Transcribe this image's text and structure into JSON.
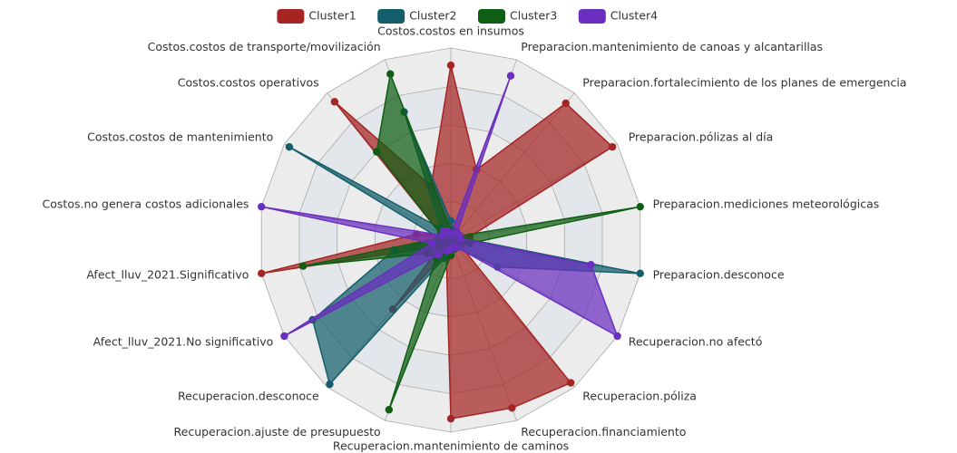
{
  "chart_data": {
    "type": "radar",
    "categories": [
      "Costos.costos en insumos",
      "Preparacion.mantenimiento de canoas y alcantarillas",
      "Preparacion.fortalecimiento de los planes de emergencia",
      "Preparacion.pólizas al día",
      "Preparacion.mediciones meteorológicas",
      "Preparacion.desconoce",
      "Recuperacion.no afectó",
      "Recuperacion.póliza",
      "Recuperacion.financiamiento",
      "Recuperacion.mantenimiento de caminos",
      "Recuperacion.ajuste de presupuesto",
      "Recuperacion.desconoce",
      "Afect_lluv_2021.No significativo",
      "Afect_lluv_2021.Significativo",
      "Costos.no genera costos adicionales",
      "Costos.costos de mantenimiento",
      "Costos.costos operativos",
      "Costos.costos de transporte/movilización"
    ],
    "series": [
      {
        "name": "Cluster1",
        "color": "#a52424",
        "values": [
          0.91,
          0.39,
          0.93,
          0.97,
          0.1,
          0.06,
          0.06,
          0.97,
          0.93,
          0.93,
          0.07,
          0.47,
          0.06,
          1.0,
          0.18,
          0.06,
          0.94,
          0.3
        ]
      },
      {
        "name": "Cluster2",
        "color": "#145e6b",
        "values": [
          0.1,
          0.05,
          0.05,
          0.05,
          0.06,
          1.0,
          0.28,
          0.05,
          0.05,
          0.08,
          0.1,
          0.98,
          0.83,
          0.3,
          0.06,
          0.97,
          0.08,
          0.71
        ]
      },
      {
        "name": "Cluster3",
        "color": "#0f5e14",
        "values": [
          0.05,
          0.05,
          0.04,
          0.04,
          1.0,
          0.1,
          0.05,
          0.04,
          0.05,
          0.08,
          0.94,
          0.12,
          0.14,
          0.78,
          0.06,
          0.06,
          0.6,
          0.92
        ]
      },
      {
        "name": "Cluster4",
        "color": "#6a2fbf",
        "values": [
          0.03,
          0.91,
          0.05,
          0.05,
          0.05,
          0.74,
          1.0,
          0.05,
          0.04,
          0.05,
          0.06,
          0.1,
          1.0,
          0.1,
          1.0,
          0.05,
          0.06,
          0.05
        ]
      }
    ],
    "rlim": [
      0,
      1
    ],
    "legend": "top"
  }
}
